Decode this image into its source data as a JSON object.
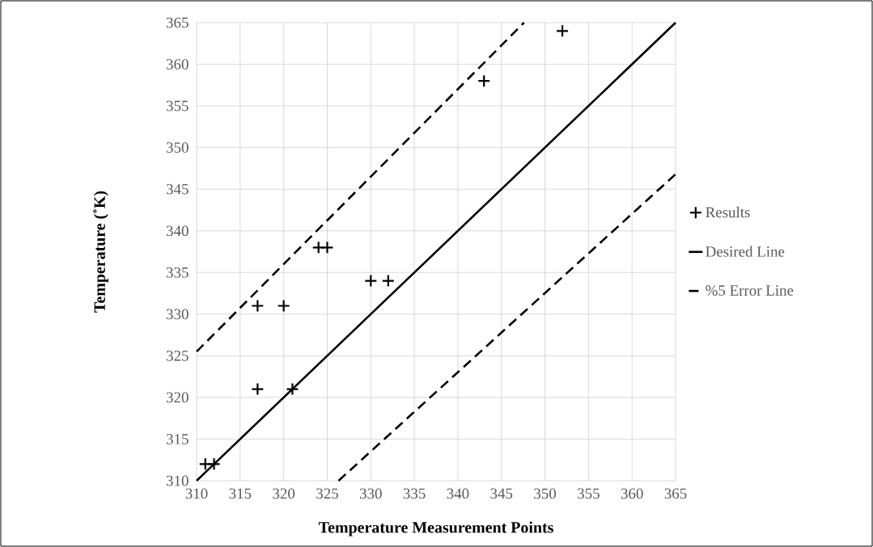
{
  "chart_data": {
    "type": "scatter",
    "xlabel": "Temperature Measurement Points",
    "ylabel": "Temperature (˚K)",
    "xlim": [
      310,
      365
    ],
    "ylim": [
      310,
      365
    ],
    "xticks": [
      310,
      315,
      320,
      325,
      330,
      335,
      340,
      345,
      350,
      355,
      360,
      365
    ],
    "yticks": [
      310,
      315,
      320,
      325,
      330,
      335,
      340,
      345,
      350,
      355,
      360,
      365
    ],
    "grid": true,
    "legend": "right",
    "series": [
      {
        "name": "Results",
        "marker": "cross",
        "color": "#000000",
        "x": [
          311,
          312,
          317,
          321,
          317,
          320,
          324,
          325,
          330,
          332,
          343,
          352
        ],
        "values": [
          312,
          312,
          321,
          321,
          331,
          331,
          338,
          338,
          334,
          334,
          358,
          364
        ]
      },
      {
        "name": "Desired Line",
        "type": "line",
        "line_style": "solid",
        "color": "#000000",
        "x": [
          310,
          365
        ],
        "values": [
          310,
          365
        ]
      },
      {
        "name": "%5 Error Line",
        "type": "line",
        "line_style": "dashed",
        "color": "#000000",
        "x": [
          310,
          347.6
        ],
        "values": [
          325.5,
          365
        ]
      },
      {
        "type": "line",
        "line_style": "dashed",
        "color": "#000000",
        "x": [
          326.3,
          365
        ],
        "values": [
          310,
          346.8
        ]
      }
    ]
  }
}
